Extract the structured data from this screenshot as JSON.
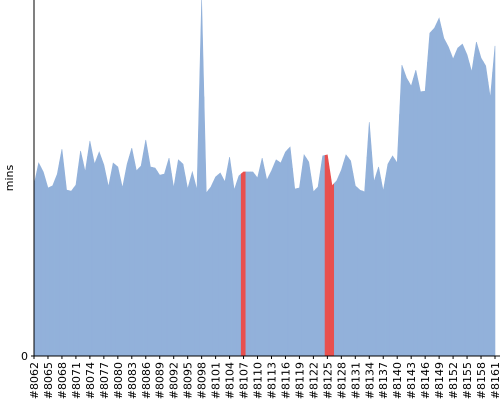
{
  "chart_data": {
    "type": "area",
    "ylabel": "mins",
    "ylim": [
      0,
      100
    ],
    "yticks": [
      0
    ],
    "categories": [
      "#8062",
      null,
      null,
      "#8065",
      null,
      null,
      "#8068",
      null,
      null,
      "#8071",
      null,
      null,
      "#8074",
      null,
      null,
      "#8077",
      null,
      null,
      "#8080",
      null,
      null,
      "#8083",
      null,
      null,
      "#8086",
      null,
      null,
      "#8089",
      null,
      null,
      "#8092",
      null,
      null,
      "#8095",
      null,
      null,
      "#8098",
      null,
      null,
      "#8101",
      null,
      null,
      "#8104",
      null,
      null,
      "#8107",
      null,
      null,
      "#8110",
      null,
      null,
      "#8113",
      null,
      null,
      "#8116",
      null,
      null,
      "#8119",
      null,
      null,
      "#8122",
      null,
      null,
      "#8125",
      null,
      null,
      "#8128",
      null,
      null,
      "#8131",
      null,
      null,
      "#8134",
      null,
      null,
      "#8137",
      null,
      null,
      "#8140",
      null,
      null,
      "#8143",
      null,
      null,
      "#8146",
      null,
      null,
      "#8149",
      null,
      null,
      "#8152",
      null,
      null,
      "#8155",
      null,
      null,
      "#8158",
      null,
      null,
      "#8161"
    ],
    "values": [
      48.0,
      54.2,
      51.7,
      47.2,
      47.8,
      51.1,
      58.1,
      46.6,
      46.3,
      48.0,
      57.6,
      51.7,
      60.4,
      53.9,
      57.3,
      53.7,
      47.5,
      54.2,
      53.1,
      47.2,
      53.9,
      58.4,
      52.0,
      53.4,
      60.7,
      53.1,
      52.8,
      50.8,
      51.1,
      55.6,
      47.2,
      55.1,
      53.9,
      46.9,
      51.7,
      46.6,
      100,
      45.8,
      47.5,
      50.3,
      51.4,
      48.9,
      55.9,
      46.6,
      50.6,
      51.7,
      51.7,
      51.7,
      50.0,
      55.6,
      49.4,
      52.0,
      55.1,
      54.2,
      57.3,
      58.7,
      46.9,
      47.2,
      56.5,
      54.5,
      46.1,
      47.5,
      56.2,
      56.5,
      47.8,
      49.2,
      52.2,
      56.5,
      54.8,
      47.8,
      46.6,
      46.1,
      65.7,
      48.9,
      53.1,
      46.3,
      53.9,
      56.2,
      54.2,
      81.7,
      78.1,
      75.8,
      80.3,
      74.2,
      74.4,
      90.7,
      92.1,
      94.9,
      89.3,
      86.8,
      83.4,
      86.5,
      87.6,
      84.6,
      79.8,
      88.2,
      83.7,
      81.5,
      72.5,
      87.1
    ],
    "colors": [
      "#92b1da",
      "#92b1da",
      "#92b1da",
      "#92b1da",
      "#92b1da",
      "#92b1da",
      "#92b1da",
      "#92b1da",
      "#92b1da",
      "#92b1da",
      "#92b1da",
      "#92b1da",
      "#92b1da",
      "#92b1da",
      "#92b1da",
      "#92b1da",
      "#92b1da",
      "#92b1da",
      "#92b1da",
      "#92b1da",
      "#92b1da",
      "#92b1da",
      "#92b1da",
      "#92b1da",
      "#92b1da",
      "#92b1da",
      "#92b1da",
      "#92b1da",
      "#92b1da",
      "#92b1da",
      "#92b1da",
      "#92b1da",
      "#92b1da",
      "#92b1da",
      "#92b1da",
      "#92b1da",
      "#92b1da",
      "#92b1da",
      "#92b1da",
      "#92b1da",
      "#92b1da",
      "#92b1da",
      "#92b1da",
      "#92b1da",
      "#92b1da",
      "#e8504f",
      "#92b1da",
      "#92b1da",
      "#92b1da",
      "#92b1da",
      "#92b1da",
      "#92b1da",
      "#92b1da",
      "#92b1da",
      "#92b1da",
      "#92b1da",
      "#92b1da",
      "#92b1da",
      "#92b1da",
      "#92b1da",
      "#92b1da",
      "#92b1da",
      "#92b1da",
      "#e8504f",
      "#e8504f",
      "#92b1da",
      "#92b1da",
      "#92b1da",
      "#92b1da",
      "#92b1da",
      "#92b1da",
      "#92b1da",
      "#92b1da",
      "#92b1da",
      "#92b1da",
      "#92b1da",
      "#92b1da",
      "#92b1da",
      "#92b1da",
      "#92b1da",
      "#92b1da",
      "#92b1da",
      "#92b1da",
      "#92b1da",
      "#92b1da",
      "#92b1da",
      "#92b1da",
      "#92b1da",
      "#92b1da",
      "#92b1da",
      "#92b1da",
      "#92b1da",
      "#92b1da",
      "#92b1da",
      "#92b1da",
      "#92b1da",
      "#92b1da",
      "#92b1da",
      "#92b1da",
      "#92b1da"
    ]
  }
}
